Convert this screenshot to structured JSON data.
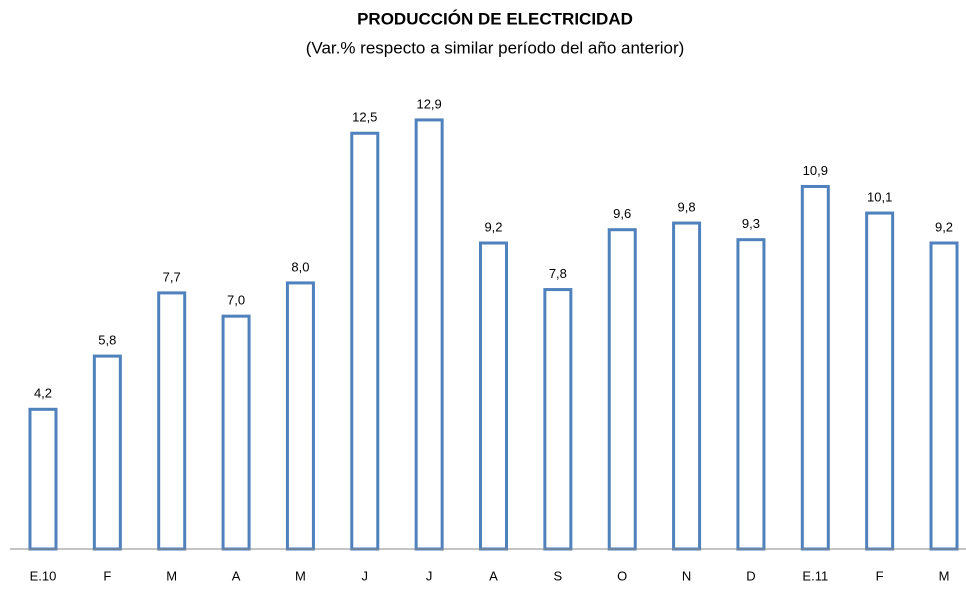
{
  "chart_data": {
    "type": "bar",
    "title": "PRODUCCIÓN DE ELECTRICIDAD",
    "subtitle": "(Var.% respecto a similar período del año anterior)",
    "categories": [
      "E.10",
      "F",
      "M",
      "A",
      "M",
      "J",
      "J",
      "A",
      "S",
      "O",
      "N",
      "D",
      "E.11",
      "F",
      "M"
    ],
    "values": [
      4.2,
      5.8,
      7.7,
      7.0,
      8.0,
      12.5,
      12.9,
      9.2,
      7.8,
      9.6,
      9.8,
      9.3,
      10.9,
      10.1,
      9.2
    ],
    "value_labels": [
      "4,2",
      "5,8",
      "7,7",
      "7,0",
      "8,0",
      "12,5",
      "12,9",
      "9,2",
      "7,8",
      "9,6",
      "9,8",
      "9,3",
      "10,9",
      "10,1",
      "9,2"
    ],
    "color": "#4f81bd",
    "ylim": [
      0,
      14
    ]
  }
}
